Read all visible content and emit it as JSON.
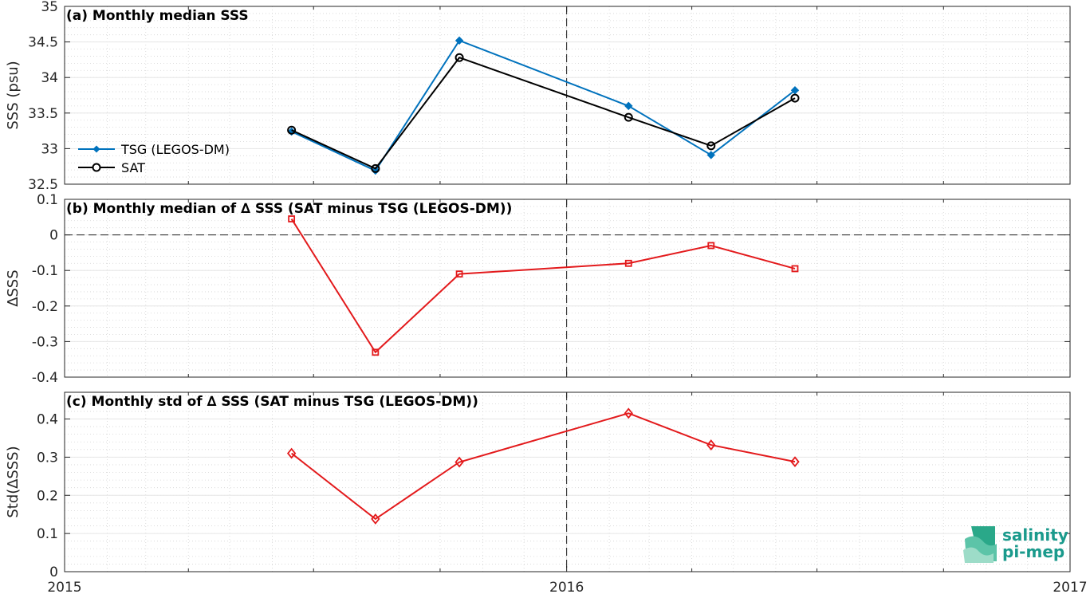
{
  "chart_data": [
    {
      "type": "line",
      "title": "(a) Monthly median SSS",
      "xlabel": "",
      "ylabel": "SSS (psu)",
      "x_tick_labels": [
        "2015",
        "2016",
        "2017"
      ],
      "y_tick_labels": [
        "32.5",
        "33",
        "33.5",
        "34",
        "34.5",
        "35"
      ],
      "ylim": [
        32.5,
        35
      ],
      "x": [
        "2015-06",
        "2015-08",
        "2015-10",
        "2016-02",
        "2016-04",
        "2016-06"
      ],
      "series": [
        {
          "name": "TSG (LEGOS-DM)",
          "color": "#0072bd",
          "marker": "diamond-filled",
          "values": [
            33.24,
            32.69,
            34.52,
            33.6,
            32.91,
            33.82
          ]
        },
        {
          "name": "SAT",
          "color": "#000000",
          "marker": "circle-open",
          "values": [
            33.26,
            32.72,
            34.28,
            33.44,
            33.04,
            33.71
          ]
        }
      ],
      "legend_position": "middle-left",
      "grid": true
    },
    {
      "type": "line",
      "title": "(b) Monthly median of ∆ SSS (SAT minus TSG (LEGOS-DM))",
      "xlabel": "",
      "ylabel": "∆SSS",
      "y_tick_labels": [
        "0.1",
        "0",
        "-0.1",
        "-0.2",
        "-0.3",
        "-0.4"
      ],
      "ylim": [
        -0.4,
        0.1
      ],
      "reference_line": 0,
      "x": [
        "2015-06",
        "2015-08",
        "2015-10",
        "2016-02",
        "2016-04",
        "2016-06"
      ],
      "series": [
        {
          "color": "#e31a1c",
          "marker": "square-open",
          "values": [
            0.045,
            -0.33,
            -0.11,
            -0.08,
            -0.03,
            -0.095
          ]
        }
      ],
      "grid": true
    },
    {
      "type": "line",
      "title": "(c) Monthly std of ∆ SSS (SAT minus TSG (LEGOS-DM))",
      "xlabel": "",
      "ylabel": "Std(∆SSS)",
      "y_tick_labels": [
        "0.4",
        "0.3",
        "0.2",
        "0.1",
        "0"
      ],
      "ylim": [
        0,
        0.47
      ],
      "x": [
        "2015-06",
        "2015-08",
        "2015-10",
        "2016-02",
        "2016-04",
        "2016-06"
      ],
      "series": [
        {
          "color": "#e31a1c",
          "marker": "diamond-open",
          "values": [
            0.31,
            0.138,
            0.287,
            0.415,
            0.332,
            0.288
          ]
        }
      ],
      "grid": true
    }
  ],
  "logo": {
    "line1": "salinity",
    "line2": "pi-mep",
    "color": "#1a9a8c"
  }
}
